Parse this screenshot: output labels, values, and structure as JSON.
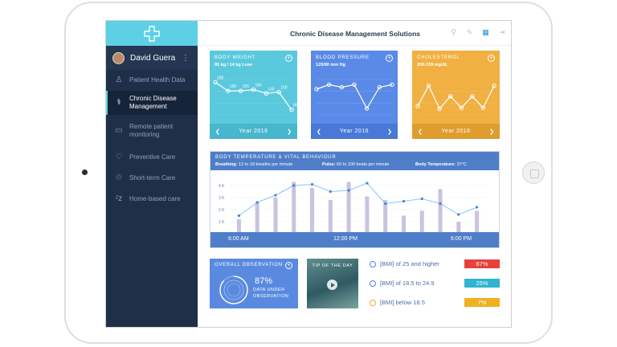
{
  "app": {
    "title": "Chronic Disease Management Solutions"
  },
  "colors": {
    "sidebar": "#1e2f47",
    "logo": "#5dd0e6",
    "body_weight": "#5ac8dd",
    "blood_pressure": "#5a8ae8",
    "cholesterol": "#f0b042",
    "vital_header": "#4f7ec8",
    "bmi_high": "#e6423b",
    "bmi_normal": "#2fb5cf",
    "bmi_low": "#f0b022"
  },
  "user": {
    "name": "David Guera",
    "menu_icon": "kebab-icon"
  },
  "sidebar": {
    "items": [
      {
        "label": "Patient Health Data",
        "icon": "person-icon"
      },
      {
        "label": "Chronic Disease Management",
        "icon": "stethoscope-icon",
        "active": true
      },
      {
        "label": "Remote patient monitoring",
        "icon": "monitor-icon"
      },
      {
        "label": "Preventive Care",
        "icon": "heart-icon"
      },
      {
        "label": "Short-term Care",
        "icon": "care-icon"
      },
      {
        "label": "Home-based care",
        "icon": "sleep-icon"
      }
    ]
  },
  "topbar_icons": [
    "search-icon",
    "edit-icon",
    "grid-icon",
    "logout-icon"
  ],
  "cards": {
    "body_weight": {
      "title": "BODY WEIGHT",
      "subtitle": "85 kg / 14 kg Lose",
      "year": "Year 2016",
      "chart_data": {
        "type": "line",
        "values": [
          189,
          155,
          155,
          160,
          145,
          150,
          80
        ],
        "labels": [
          "189",
          "155",
          "155",
          "160",
          "145",
          "150",
          "80"
        ]
      }
    },
    "blood_pressure": {
      "title": "BLOOD PRESSURE",
      "subtitle": "120/80 mm Hg",
      "year": "Year 2016",
      "chart_data": {
        "type": "line",
        "values": [
          125,
          132,
          128,
          132,
          95,
          128,
          132
        ]
      }
    },
    "cholesterol": {
      "title": "CHOLESTEROL",
      "subtitle": "200-239 mg/dL",
      "year": "Year 2016",
      "chart_data": {
        "type": "line",
        "values": [
          215,
          238,
          212,
          226,
          213,
          226,
          213,
          238
        ]
      }
    }
  },
  "vitals": {
    "title": "BODY TEMPERATURE & VITAL BEHAVIOUR",
    "breathing_label": "Breathing:",
    "breathing_value": "12 to 18 breaths per minute",
    "pulse_label": "Pulse:",
    "pulse_value": "60 to 100 beats per minute",
    "temp_label": "Body Temperature:",
    "temp_value": "37°C",
    "chart_data": {
      "type": "bar",
      "y_ticks": [
        "1 K",
        "2 K",
        "3 K",
        "4 K"
      ],
      "ylim": [
        0,
        5
      ],
      "x_ticks": [
        "6:00 AM",
        "12:00 PM",
        "6:00 PM"
      ],
      "bars": [
        1.2,
        2.6,
        3.0,
        4.3,
        3.8,
        2.8,
        4.3,
        3.1,
        2.8,
        1.5,
        1.9,
        3.7,
        1.0,
        1.9
      ],
      "line": [
        1.5,
        2.6,
        3.2,
        4.0,
        4.1,
        3.5,
        3.6,
        4.2,
        2.5,
        2.7,
        2.9,
        2.5,
        1.6,
        2.2
      ]
    }
  },
  "observation": {
    "title": "OVERALL OBSERVATION",
    "percent": "87%",
    "line1": "DATA UNDER",
    "line2": "OBSERVATION",
    "value": 0.87
  },
  "tip": {
    "title": "TIP OF THE DAY",
    "icon": "play-icon"
  },
  "bmi": [
    {
      "label": "[BMI] of 25 and higher",
      "value": "67%",
      "color": "#e6423b"
    },
    {
      "label": "[BMI] of 18.5 to 24.9",
      "value": "25%",
      "color": "#2fb5cf"
    },
    {
      "label": "[BMI] below 18.5",
      "value": "7%",
      "color": "#f0b022"
    }
  ]
}
